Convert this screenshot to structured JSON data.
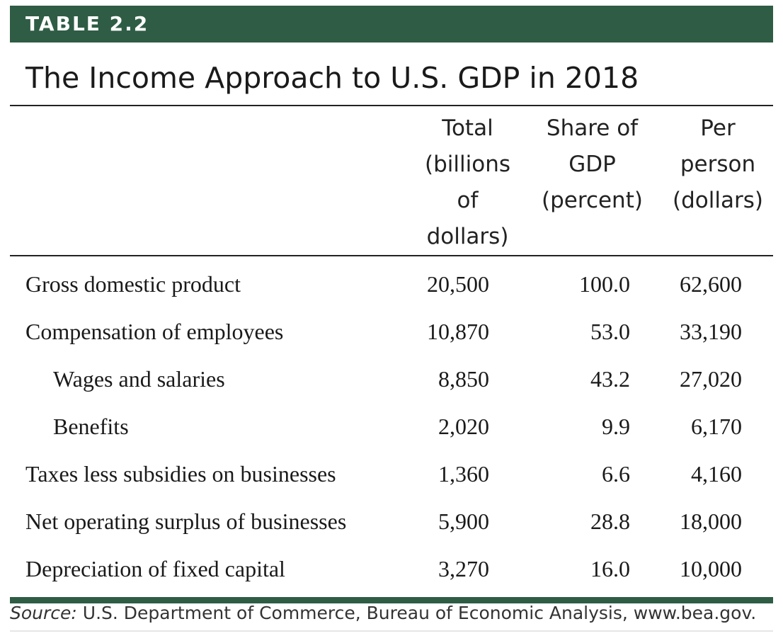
{
  "table_label": "TABLE 2.2",
  "title": "The Income Approach to U.S. GDP in 2018",
  "columns": [
    {
      "lines": [
        "Total",
        "(billions",
        "of",
        "dollars)"
      ]
    },
    {
      "lines": [
        "Share of",
        "GDP",
        "(percent)"
      ]
    },
    {
      "lines": [
        "Per",
        "person",
        "(dollars)"
      ]
    }
  ],
  "rows": [
    {
      "label": "Gross domestic product",
      "total": "20,500",
      "share": "100.0",
      "per_person": "62,600"
    },
    {
      "label": "Compensation of employees",
      "total": "10,870",
      "share": "53.0",
      "per_person": "33,190"
    },
    {
      "label": "Wages and salaries",
      "total": "8,850",
      "share": "43.2",
      "per_person": "27,020"
    },
    {
      "label": "Benefits",
      "total": "2,020",
      "share": "9.9",
      "per_person": "6,170"
    },
    {
      "label": "Taxes less subsidies on businesses",
      "total": "1,360",
      "share": "6.6",
      "per_person": "4,160"
    },
    {
      "label": "Net operating surplus of businesses",
      "total": "5,900",
      "share": "28.8",
      "per_person": "18,000"
    },
    {
      "label": "Depreciation of fixed capital",
      "total": "3,270",
      "share": "16.0",
      "per_person": "10,000"
    }
  ],
  "source": {
    "lead": "Source:",
    "text": " U.S. Department of Commerce, Bureau of Economic Analysis, www.bea.gov."
  },
  "colors": {
    "accent": "#2f5c45"
  }
}
